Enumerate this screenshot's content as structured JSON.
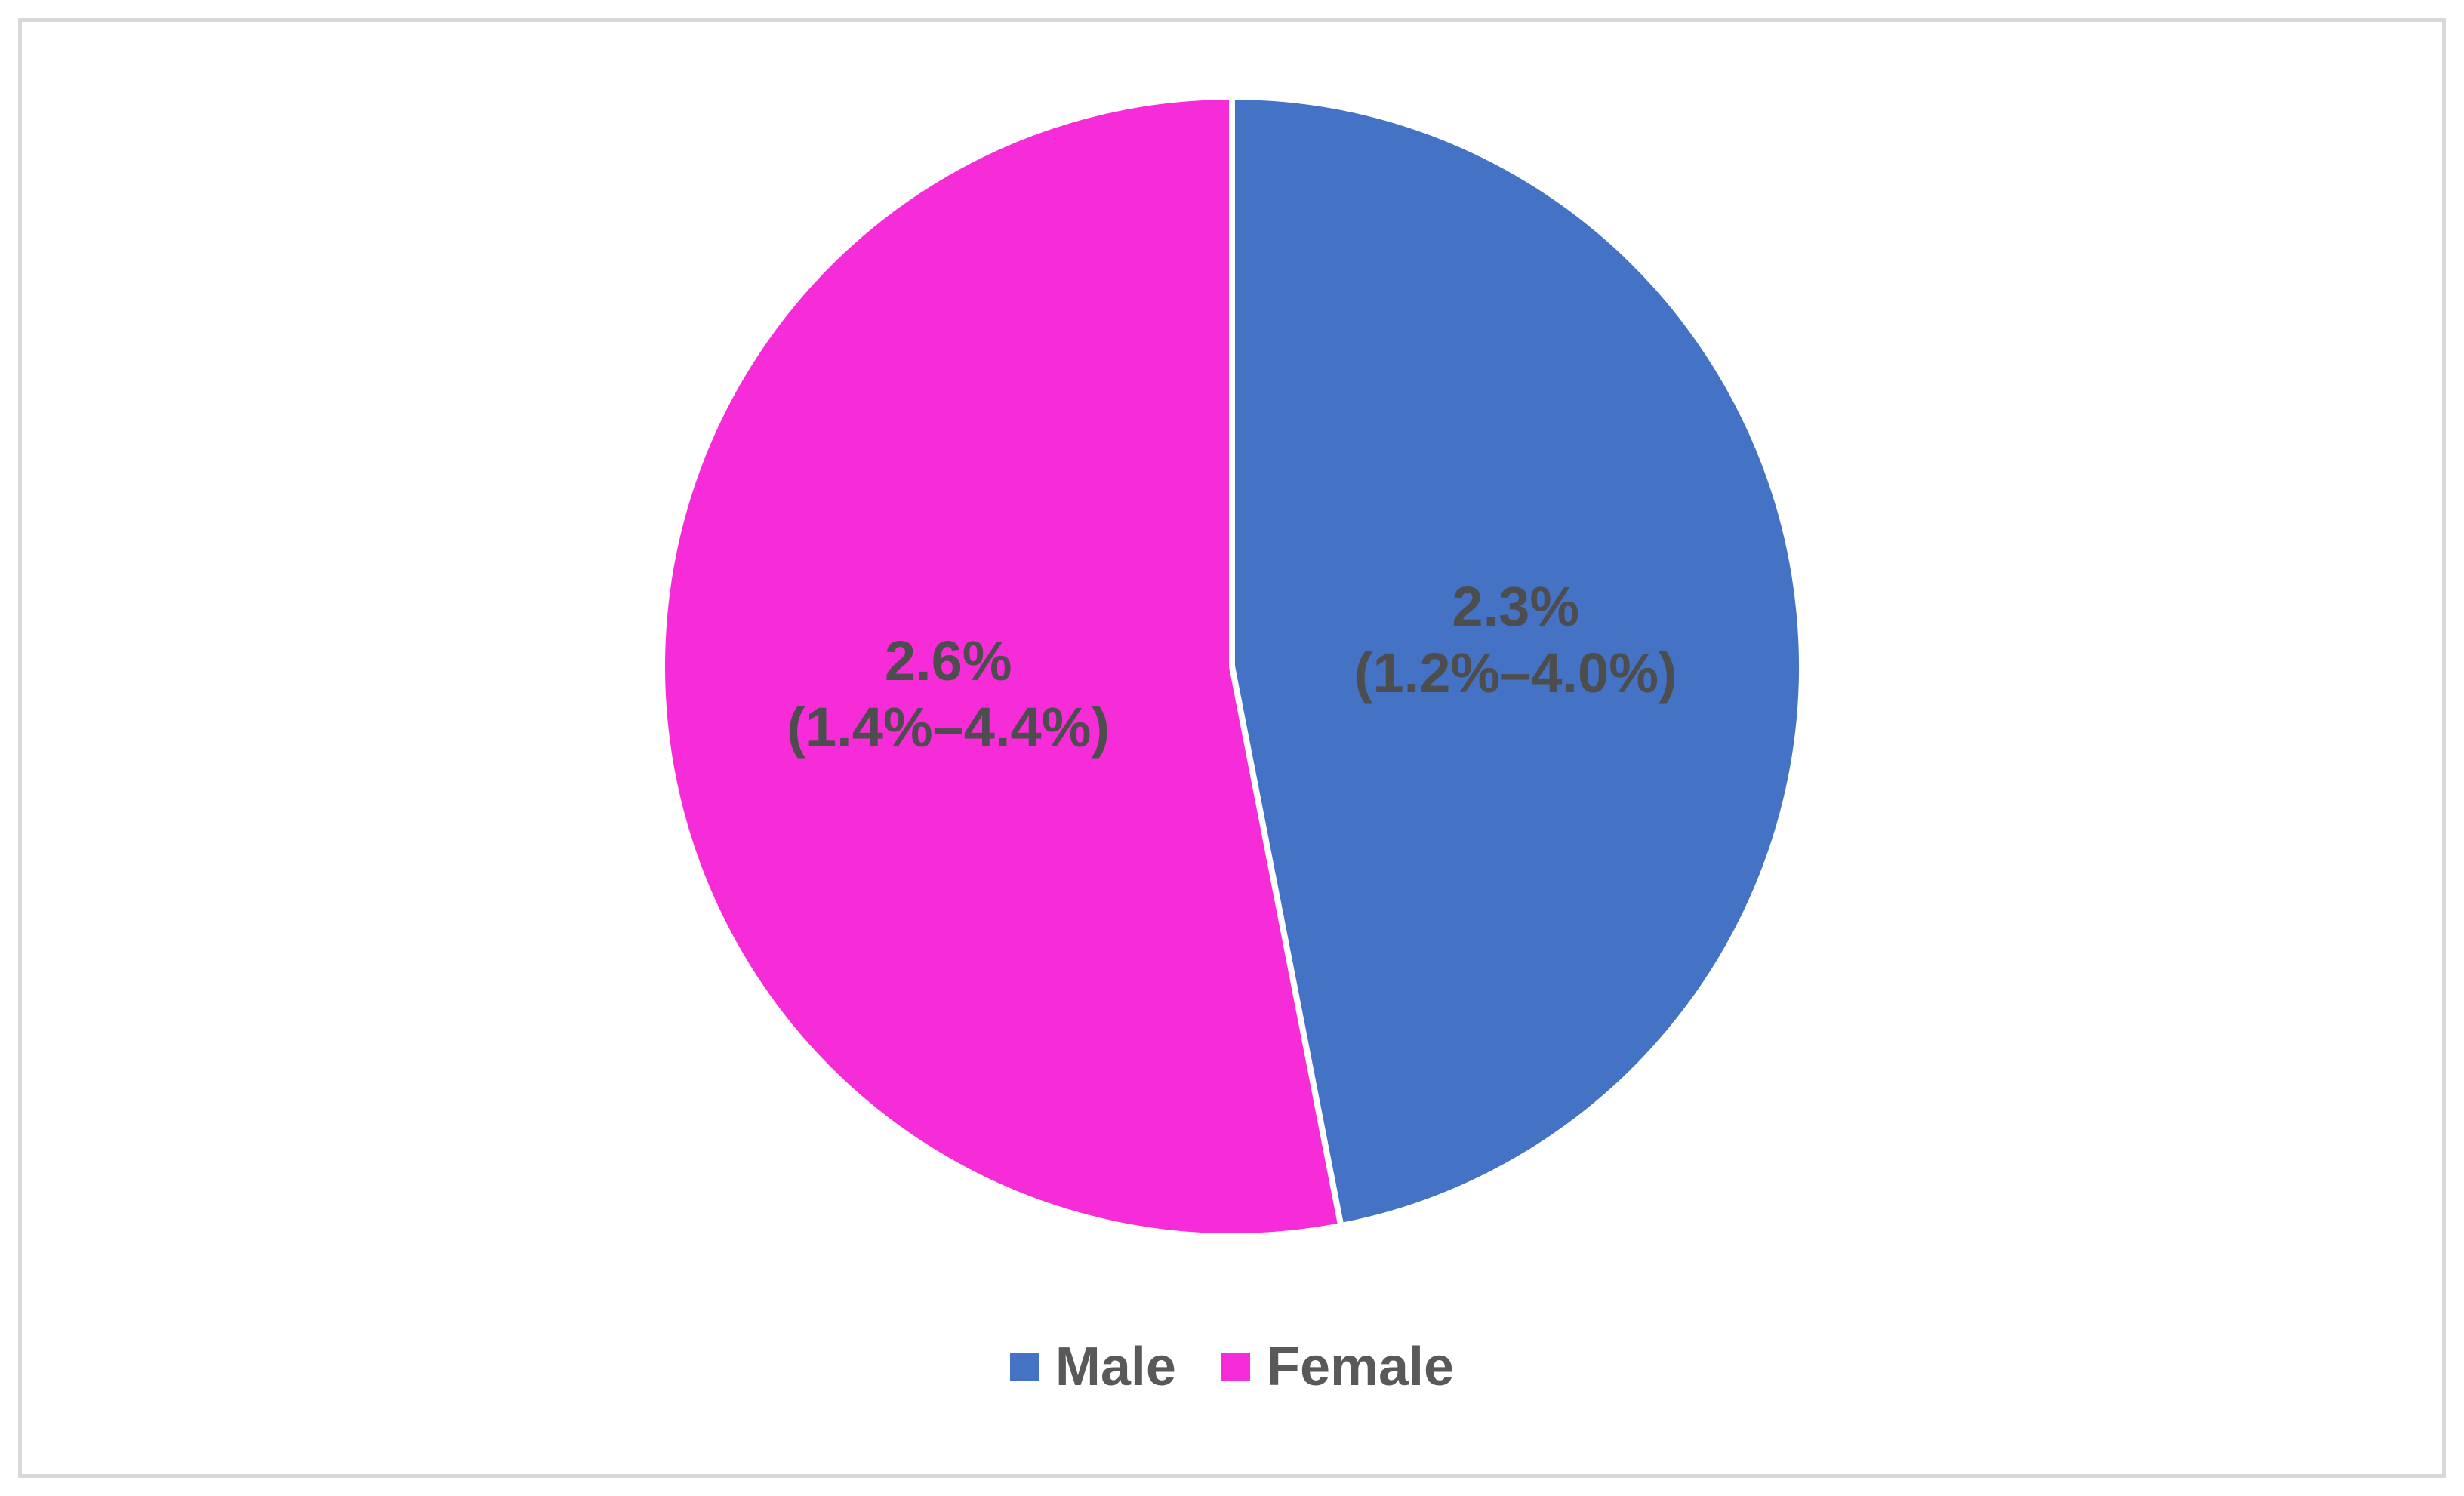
{
  "chart_data": {
    "type": "pie",
    "title": "",
    "categories": [
      "Male",
      "Female"
    ],
    "values": [
      2.3,
      2.6
    ],
    "data_labels": [
      {
        "value": "2.3%",
        "range": "(1.2%–4.0%)"
      },
      {
        "value": "2.6%",
        "range": "(1.4%–4.4%)"
      }
    ],
    "colors": [
      "#4472C4",
      "#F72CD9"
    ],
    "slice_border_color": "#ffffff",
    "label_color": "#4d4d4d",
    "start_angle_deg": 0,
    "direction": "clockwise",
    "legend": {
      "position": "bottom",
      "entries": [
        "Male",
        "Female"
      ]
    }
  }
}
